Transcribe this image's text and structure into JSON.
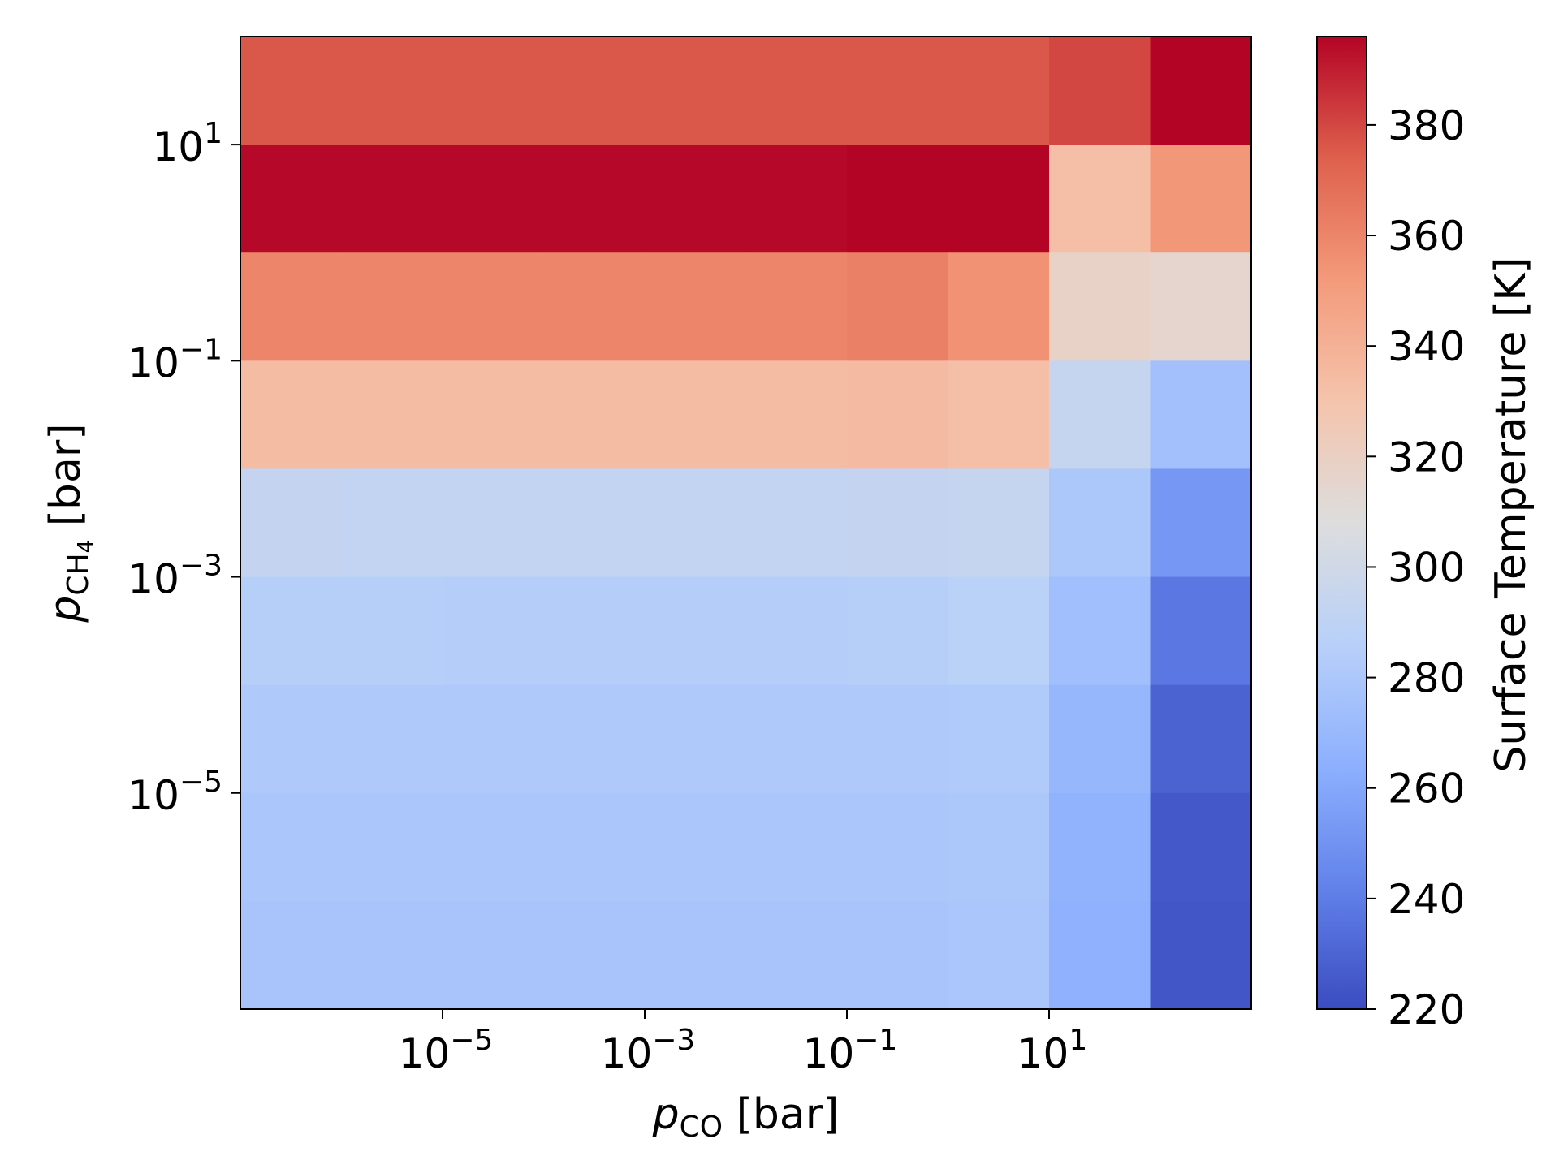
{
  "chart_data": {
    "type": "heatmap",
    "xlabel": {
      "var": "p",
      "sub": "CO",
      "unit": " [bar]"
    },
    "ylabel": {
      "var": "p",
      "sub": "CH",
      "subsub": "4",
      "unit": " [bar]"
    },
    "colorbar_label": "Surface Temperature [K]",
    "x_scale": "log",
    "y_scale": "log",
    "x_edges": [
      1e-07,
      1e-06,
      1e-05,
      0.0001,
      0.001,
      0.01,
      0.1,
      1,
      10,
      100,
      1000
    ],
    "y_edges": [
      1e-07,
      1e-06,
      1e-05,
      0.0001,
      0.001,
      0.01,
      0.1,
      1,
      10,
      100
    ],
    "x_ticks": [
      {
        "value": 1e-05,
        "base": "10",
        "exp": "−5"
      },
      {
        "value": 0.001,
        "base": "10",
        "exp": "−3"
      },
      {
        "value": 0.1,
        "base": "10",
        "exp": "−1"
      },
      {
        "value": 10,
        "base": "10",
        "exp": "1"
      }
    ],
    "y_ticks": [
      {
        "value": 1e-05,
        "base": "10",
        "exp": "−5"
      },
      {
        "value": 0.001,
        "base": "10",
        "exp": "−3"
      },
      {
        "value": 0.1,
        "base": "10",
        "exp": "−1"
      },
      {
        "value": 10,
        "base": "10",
        "exp": "1"
      }
    ],
    "colorbar": {
      "cmap": "coolwarm",
      "vmin": 220,
      "vmax": 396,
      "ticks": [
        "220",
        "240",
        "260",
        "280",
        "300",
        "320",
        "340",
        "360",
        "380"
      ]
    },
    "rows_top_to_bottom": [
      [
        376,
        376,
        376,
        376,
        376,
        376,
        376,
        376,
        380,
        396
      ],
      [
        395,
        395,
        395,
        395,
        395,
        395,
        396,
        396,
        333,
        353
      ],
      [
        360,
        360,
        360,
        360,
        360,
        360,
        362,
        355,
        318,
        315
      ],
      [
        334,
        334,
        334,
        334,
        334,
        334,
        335,
        333,
        294,
        275
      ],
      [
        293,
        292,
        292,
        292,
        292,
        292,
        293,
        294,
        280,
        252
      ],
      [
        285,
        285,
        284,
        284,
        284,
        284,
        285,
        287,
        274,
        238
      ],
      [
        281,
        281,
        281,
        281,
        281,
        281,
        281,
        282,
        269,
        229
      ],
      [
        279,
        279,
        279,
        279,
        279,
        279,
        279,
        280,
        266,
        225
      ],
      [
        278,
        278,
        278,
        278,
        278,
        278,
        278,
        279,
        265,
        224
      ]
    ]
  }
}
